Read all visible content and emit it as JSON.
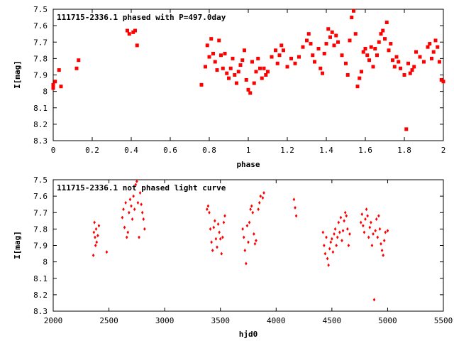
{
  "chart_data": [
    {
      "type": "scatter",
      "title": "111715-2336.1 phased with P=497.0day",
      "xlabel": "phase",
      "ylabel": "I[mag]",
      "xlim": [
        0,
        2
      ],
      "ylim": [
        8.3,
        7.5
      ],
      "y_inverted": true,
      "xticks": [
        "0",
        "0.2",
        "0.4",
        "0.6",
        "0.8",
        "1",
        "1.2",
        "1.4",
        "1.6",
        "1.8",
        "2"
      ],
      "yticks": [
        "7.5",
        "7.6",
        "7.7",
        "7.8",
        "7.9",
        "8",
        "8.1",
        "8.2",
        "8.3"
      ],
      "grid": false,
      "marker_color": "#ff0000",
      "series": [
        {
          "x": [
            0.0,
            0.0,
            0.01,
            0.03,
            0.04,
            0.12,
            0.13,
            0.38,
            0.39,
            0.41,
            0.42,
            0.43,
            0.76,
            0.78,
            0.79,
            0.8,
            0.81,
            0.82,
            0.83,
            0.84,
            0.85,
            0.86,
            0.87,
            0.88,
            0.89,
            0.9,
            0.91,
            0.92,
            0.93,
            0.94,
            0.95,
            0.96,
            0.97,
            0.98,
            0.99,
            1.0,
            1.01,
            1.02,
            1.03,
            1.04,
            1.05,
            1.06,
            1.07,
            1.08,
            1.09,
            1.1,
            1.12,
            1.14,
            1.15,
            1.16,
            1.17,
            1.18,
            1.2,
            1.22,
            1.24,
            1.26,
            1.28,
            1.3,
            1.31,
            1.32,
            1.33,
            1.34,
            1.36,
            1.37,
            1.38,
            1.39,
            1.4,
            1.41,
            1.42,
            1.43,
            1.44,
            1.45,
            1.46,
            1.48,
            1.5,
            1.51,
            1.52,
            1.53,
            1.54,
            1.55,
            1.56,
            1.57,
            1.58,
            1.59,
            1.6,
            1.61,
            1.62,
            1.63,
            1.64,
            1.65,
            1.66,
            1.67,
            1.68,
            1.69,
            1.7,
            1.71,
            1.72,
            1.73,
            1.74,
            1.75,
            1.76,
            1.77,
            1.78,
            1.8,
            1.81,
            1.82,
            1.83,
            1.84,
            1.85,
            1.86,
            1.88,
            1.9,
            1.92,
            1.93,
            1.94,
            1.95,
            1.96,
            1.97,
            1.98,
            1.99,
            2.0
          ],
          "y": [
            7.96,
            7.98,
            7.94,
            7.87,
            7.97,
            7.86,
            7.81,
            7.63,
            7.65,
            7.64,
            7.63,
            7.72,
            7.96,
            7.85,
            7.72,
            7.79,
            7.68,
            7.77,
            7.82,
            7.87,
            7.69,
            7.78,
            7.86,
            7.77,
            7.89,
            7.92,
            7.86,
            7.8,
            7.9,
            7.95,
            7.88,
            7.84,
            7.81,
            7.75,
            7.93,
            7.99,
            8.01,
            7.82,
            7.95,
            7.88,
            7.8,
            7.86,
            7.92,
            7.86,
            7.9,
            7.88,
            7.79,
            7.75,
            7.83,
            7.78,
            7.72,
            7.75,
            7.85,
            7.8,
            7.83,
            7.79,
            7.73,
            7.69,
            7.65,
            7.71,
            7.78,
            7.82,
            7.74,
            7.86,
            7.89,
            7.77,
            7.71,
            7.62,
            7.67,
            7.64,
            7.72,
            7.66,
            7.7,
            7.78,
            7.83,
            7.9,
            7.69,
            7.55,
            7.51,
            7.65,
            7.97,
            7.92,
            7.88,
            7.76,
            7.74,
            7.78,
            7.81,
            7.73,
            7.85,
            7.74,
            7.78,
            7.7,
            7.65,
            7.63,
            7.68,
            7.58,
            7.75,
            7.71,
            7.81,
            7.85,
            7.79,
            7.82,
            7.86,
            7.9,
            8.23,
            7.83,
            7.89,
            7.87,
            7.85,
            7.76,
            7.79,
            7.82,
            7.73,
            7.71,
            7.8,
            7.76,
            7.69,
            7.73,
            7.82,
            7.93,
            7.94
          ]
        }
      ]
    },
    {
      "type": "scatter",
      "title": "111715-2336.1 not phased light curve",
      "xlabel": "hjd0",
      "ylabel": "I[mag]",
      "xlim": [
        2000,
        5500
      ],
      "ylim": [
        8.3,
        7.5
      ],
      "y_inverted": true,
      "xticks": [
        "2000",
        "2500",
        "3000",
        "3500",
        "4000",
        "4500",
        "5000",
        "5500"
      ],
      "yticks": [
        "7.5",
        "7.6",
        "7.7",
        "7.8",
        "7.9",
        "8",
        "8.1",
        "8.2",
        "8.3"
      ],
      "grid": false,
      "marker_color": "#ff0000",
      "series": [
        {
          "x": [
            2360,
            2365,
            2370,
            2375,
            2380,
            2385,
            2390,
            2400,
            2410,
            2480,
            2620,
            2630,
            2640,
            2650,
            2660,
            2670,
            2680,
            2690,
            2700,
            2710,
            2720,
            2730,
            2740,
            2750,
            2760,
            2770,
            2780,
            2790,
            2800,
            2810,
            2820,
            3380,
            3390,
            3400,
            3410,
            3420,
            3430,
            3440,
            3450,
            3460,
            3470,
            3480,
            3490,
            3500,
            3510,
            3520,
            3530,
            3540,
            3700,
            3710,
            3720,
            3730,
            3740,
            3750,
            3760,
            3770,
            3780,
            3790,
            3800,
            3810,
            3820,
            3840,
            3850,
            3860,
            3880,
            3890,
            4160,
            4170,
            4180,
            4420,
            4430,
            4440,
            4450,
            4460,
            4470,
            4480,
            4490,
            4500,
            4510,
            4520,
            4530,
            4540,
            4550,
            4560,
            4570,
            4580,
            4590,
            4600,
            4610,
            4620,
            4630,
            4640,
            4650,
            4660,
            4760,
            4770,
            4780,
            4790,
            4800,
            4810,
            4820,
            4830,
            4840,
            4850,
            4860,
            4870,
            4880,
            4890,
            4900,
            4910,
            4920,
            4930,
            4940,
            4950,
            4960,
            4970,
            4980,
            5000
          ],
          "y": [
            7.96,
            7.82,
            7.76,
            7.85,
            7.9,
            7.8,
            7.88,
            7.84,
            7.78,
            7.94,
            7.73,
            7.68,
            7.79,
            7.64,
            7.85,
            7.82,
            7.7,
            7.62,
            7.66,
            7.74,
            7.6,
            7.68,
            7.53,
            7.51,
            7.64,
            7.85,
            7.58,
            7.65,
            7.7,
            7.74,
            7.8,
            7.68,
            7.66,
            7.7,
            7.8,
            7.88,
            7.93,
            7.79,
            7.75,
            7.86,
            7.91,
            7.77,
            7.82,
            7.86,
            7.95,
            7.85,
            7.76,
            7.72,
            7.8,
            7.85,
            7.93,
            8.01,
            7.78,
            7.88,
            7.76,
            7.68,
            7.66,
            7.7,
            7.83,
            7.89,
            7.87,
            7.68,
            7.64,
            7.6,
            7.61,
            7.58,
            7.62,
            7.67,
            7.72,
            7.82,
            7.9,
            7.95,
            7.85,
            7.98,
            8.02,
            7.92,
            7.88,
            7.86,
            7.94,
            7.83,
            7.8,
            7.9,
            7.85,
            7.76,
            7.82,
            7.73,
            7.87,
            7.81,
            7.75,
            7.7,
            7.72,
            7.8,
            7.9,
            7.83,
            7.76,
            7.71,
            7.78,
            7.82,
            7.74,
            7.68,
            7.72,
            7.85,
            7.79,
            7.76,
            7.9,
            7.83,
            8.23,
            7.81,
            7.74,
            7.85,
            7.72,
            7.8,
            7.89,
            7.93,
            7.96,
            7.87,
            7.82,
            7.81
          ]
        }
      ]
    }
  ]
}
